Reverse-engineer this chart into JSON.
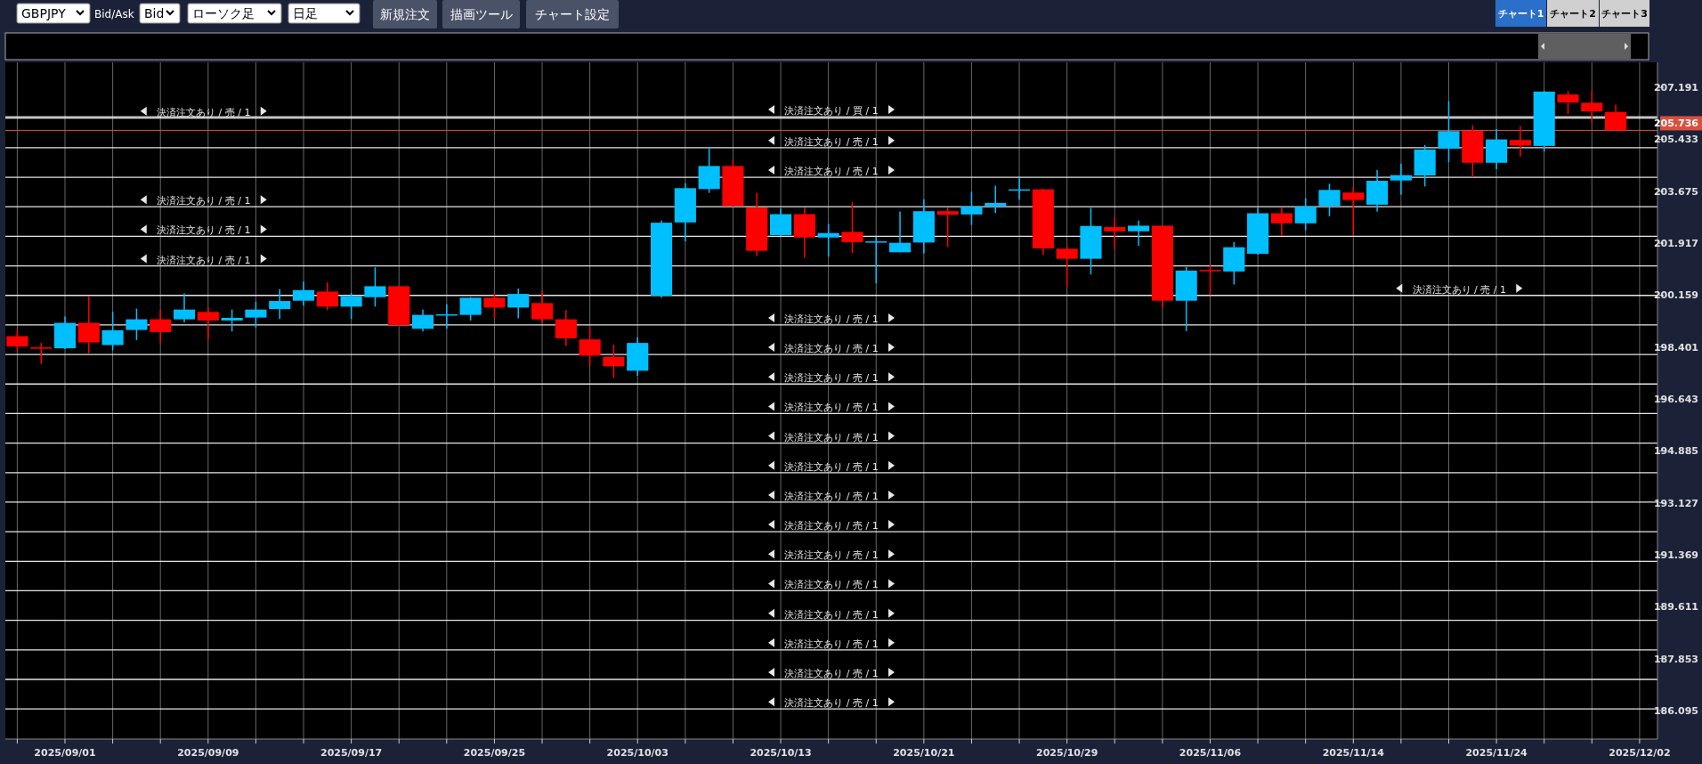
{
  "chart_data": {
    "type": "candlestick",
    "title": "GBPJPY",
    "annotations": [
      "Bid/Ask",
      "Bid",
      "ローソク足",
      "日足",
      "新規注文",
      "描画ツール",
      "チャート設定",
      "チャート1",
      "チャート2",
      "チャート3"
    ],
    "categories": [
      null,
      null,
      "2025/09/01",
      null,
      null,
      null,
      null,
      null,
      "2025/09/09",
      null,
      null,
      null,
      null,
      null,
      "2025/09/17",
      null,
      null,
      null,
      null,
      null,
      "2025/09/25",
      null,
      null,
      null,
      null,
      null,
      "2025/10/03",
      null,
      null,
      null,
      null,
      null,
      "2025/10/13",
      null,
      null,
      null,
      null,
      null,
      "2025/10/21",
      null,
      null,
      null,
      null,
      null,
      "2025/10/29",
      null,
      null,
      null,
      null,
      null,
      "2025/11/06",
      null,
      null,
      null,
      null,
      null,
      "2025/11/14",
      null,
      null,
      null,
      null,
      null,
      "2025/11/24",
      null,
      null,
      null,
      null,
      null,
      "2025/12/02"
    ],
    "ohlc": [
      [
        198.77,
        199.0,
        198.26,
        198.42
      ],
      [
        198.39,
        198.54,
        197.83,
        198.37
      ],
      [
        198.36,
        199.43,
        198.33,
        199.22
      ],
      [
        199.22,
        200.12,
        198.2,
        198.56
      ],
      [
        198.47,
        199.6,
        198.29,
        198.97
      ],
      [
        198.98,
        199.7,
        198.64,
        199.34
      ],
      [
        199.34,
        199.66,
        198.54,
        198.91
      ],
      [
        199.34,
        200.22,
        199.24,
        199.67
      ],
      [
        199.59,
        199.74,
        198.66,
        199.3
      ],
      [
        199.3,
        199.67,
        198.93,
        199.39
      ],
      [
        199.4,
        199.94,
        199.06,
        199.67
      ],
      [
        199.69,
        200.36,
        199.35,
        199.96
      ],
      [
        199.97,
        200.62,
        199.8,
        200.33
      ],
      [
        200.28,
        200.59,
        199.65,
        199.77
      ],
      [
        199.77,
        200.23,
        199.35,
        200.12
      ],
      [
        200.09,
        201.1,
        199.77,
        200.46
      ],
      [
        200.46,
        200.46,
        199.12,
        199.14
      ],
      [
        199.02,
        199.67,
        198.93,
        199.49
      ],
      [
        199.49,
        199.85,
        199.03,
        199.51
      ],
      [
        199.49,
        200.09,
        199.3,
        200.07
      ],
      [
        200.07,
        200.22,
        199.38,
        199.74
      ],
      [
        199.74,
        200.38,
        199.37,
        200.2
      ],
      [
        199.89,
        200.29,
        199.21,
        199.34
      ],
      [
        199.34,
        199.65,
        198.44,
        198.7
      ],
      [
        198.66,
        199.08,
        197.76,
        198.11
      ],
      [
        198.07,
        198.48,
        197.36,
        197.75
      ],
      [
        197.6,
        198.73,
        197.43,
        198.54
      ],
      [
        200.14,
        202.69,
        200.07,
        202.61
      ],
      [
        202.62,
        203.95,
        201.98,
        203.78
      ],
      [
        203.75,
        205.18,
        203.62,
        204.53
      ],
      [
        204.53,
        204.75,
        203.15,
        203.18
      ],
      [
        203.12,
        203.62,
        201.48,
        201.66
      ],
      [
        202.19,
        203.1,
        202.17,
        202.9
      ],
      [
        202.9,
        203.12,
        201.42,
        202.11
      ],
      [
        202.11,
        202.57,
        201.46,
        202.26
      ],
      [
        202.3,
        203.3,
        201.58,
        201.95
      ],
      [
        201.94,
        202.13,
        200.56,
        201.98
      ],
      [
        201.61,
        202.99,
        201.61,
        201.93
      ],
      [
        201.94,
        203.4,
        201.57,
        203.0
      ],
      [
        203.0,
        203.12,
        201.79,
        202.88
      ],
      [
        202.89,
        203.66,
        202.53,
        203.16
      ],
      [
        203.17,
        203.86,
        202.94,
        203.28
      ],
      [
        203.7,
        204.11,
        203.39,
        203.74
      ],
      [
        203.74,
        203.76,
        201.52,
        201.74
      ],
      [
        201.73,
        201.83,
        200.44,
        201.39
      ],
      [
        201.39,
        203.11,
        200.86,
        202.5
      ],
      [
        202.46,
        202.79,
        201.71,
        202.32
      ],
      [
        202.32,
        202.68,
        201.83,
        202.51
      ],
      [
        202.51,
        202.53,
        199.74,
        199.97
      ],
      [
        199.97,
        201.11,
        198.94,
        200.99
      ],
      [
        201.01,
        201.23,
        200.16,
        200.97
      ],
      [
        200.96,
        201.96,
        200.52,
        201.78
      ],
      [
        201.56,
        203.11,
        201.53,
        202.93
      ],
      [
        202.93,
        203.11,
        202.17,
        202.59
      ],
      [
        202.59,
        203.44,
        202.35,
        203.16
      ],
      [
        203.18,
        203.93,
        202.83,
        203.72
      ],
      [
        203.63,
        203.81,
        202.2,
        203.38
      ],
      [
        203.22,
        204.39,
        202.99,
        204.03
      ],
      [
        204.04,
        204.61,
        203.56,
        204.22
      ],
      [
        204.21,
        205.24,
        203.84,
        205.09
      ],
      [
        205.12,
        206.73,
        204.66,
        205.71
      ],
      [
        205.72,
        205.91,
        204.15,
        204.64
      ],
      [
        204.64,
        205.78,
        204.42,
        205.43
      ],
      [
        205.41,
        205.88,
        204.85,
        205.22
      ],
      [
        205.21,
        207.07,
        205.02,
        207.05
      ],
      [
        206.95,
        207.07,
        206.28,
        206.68
      ],
      [
        206.67,
        207.07,
        206.01,
        206.38
      ],
      [
        206.36,
        206.61,
        205.736,
        205.736
      ],
      null
    ],
    "colors": [
      "#ff0000",
      "#ff0000",
      "#00bfff",
      "#ff0000",
      "#00bfff",
      "#00bfff",
      "#ff0000",
      "#00bfff",
      "#ff0000",
      "#00bfff",
      "#00bfff",
      "#00bfff",
      "#00bfff",
      "#ff0000",
      "#00bfff",
      "#00bfff",
      "#ff0000",
      "#00bfff",
      "#00bfff",
      "#00bfff",
      "#ff0000",
      "#00bfff",
      "#ff0000",
      "#ff0000",
      "#ff0000",
      "#ff0000",
      "#00bfff",
      "#00bfff",
      "#00bfff",
      "#00bfff",
      "#ff0000",
      "#ff0000",
      "#00bfff",
      "#ff0000",
      "#00bfff",
      "#ff0000",
      "#00bfff",
      "#00bfff",
      "#00bfff",
      "#ff0000",
      "#00bfff",
      "#00bfff",
      "#00bfff",
      "#ff0000",
      "#ff0000",
      "#00bfff",
      "#ff0000",
      "#00bfff",
      "#ff0000",
      "#00bfff",
      "#ff0000",
      "#00bfff",
      "#00bfff",
      "#ff0000",
      "#00bfff",
      "#00bfff",
      "#ff0000",
      "#00bfff",
      "#00bfff",
      "#00bfff",
      "#00bfff",
      "#ff0000",
      "#00bfff",
      "#ff0000",
      "#00bfff",
      "#ff0000",
      "#ff0000",
      "#ff0000",
      null
    ],
    "ylim": [
      185.13,
      208.04
    ],
    "yticks": [
      207.191,
      205.433,
      203.675,
      201.917,
      200.159,
      198.401,
      196.643,
      194.885,
      193.127,
      191.369,
      189.611,
      187.853,
      186.095
    ],
    "grid": "x",
    "ref_lines": [
      {
        "axis": "y",
        "value": 205.736,
        "label": "205.736",
        "color": "#d9503f"
      },
      {
        "axis": "y",
        "value": 206.2,
        "label": "決済注文あり / 買 / 1",
        "color": "#e6e6e6"
      },
      {
        "axis": "y",
        "value": 206.15,
        "label": "決済注文あり / 売 / 1",
        "color": "#e6e6e6"
      },
      {
        "axis": "y",
        "value": 205.15,
        "label": "決済注文あり / 売 / 1",
        "color": "#e6e6e6"
      },
      {
        "axis": "y",
        "value": 204.15,
        "label": "決済注文あり / 売 / 1",
        "color": "#e6e6e6"
      },
      {
        "axis": "y",
        "value": 203.15,
        "label": "決済注文あり / 売 / 1",
        "color": "#e6e6e6"
      },
      {
        "axis": "y",
        "value": 202.15,
        "label": "決済注文あり / 売 / 1",
        "color": "#e6e6e6"
      },
      {
        "axis": "y",
        "value": 201.15,
        "label": "決済注文あり / 売 / 1",
        "color": "#e6e6e6"
      },
      {
        "axis": "y",
        "value": 200.15,
        "label": "決済注文あり / 売 / 1",
        "color": "#e6e6e6"
      },
      {
        "axis": "y",
        "value": 199.15,
        "label": "決済注文あり / 売 / 1",
        "color": "#e6e6e6"
      },
      {
        "axis": "y",
        "value": 198.15,
        "label": "決済注文あり / 売 / 1",
        "color": "#e6e6e6"
      },
      {
        "axis": "y",
        "value": 197.15,
        "label": "決済注文あり / 売 / 1",
        "color": "#e6e6e6"
      },
      {
        "axis": "y",
        "value": 196.15,
        "label": "決済注文あり / 売 / 1",
        "color": "#e6e6e6"
      },
      {
        "axis": "y",
        "value": 195.15,
        "label": "決済注文あり / 売 / 1",
        "color": "#e6e6e6"
      },
      {
        "axis": "y",
        "value": 194.15,
        "label": "決済注文あり / 売 / 1",
        "color": "#e6e6e6"
      },
      {
        "axis": "y",
        "value": 193.15,
        "label": "決済注文あり / 売 / 1",
        "color": "#e6e6e6"
      },
      {
        "axis": "y",
        "value": 192.15,
        "label": "決済注文あり / 売 / 1",
        "color": "#e6e6e6"
      },
      {
        "axis": "y",
        "value": 191.15,
        "label": "決済注文あり / 売 / 1",
        "color": "#e6e6e6"
      },
      {
        "axis": "y",
        "value": 190.15,
        "label": "決済注文あり / 売 / 1",
        "color": "#e6e6e6"
      },
      {
        "axis": "y",
        "value": 189.15,
        "label": "決済注文あり / 売 / 1",
        "color": "#e6e6e6"
      },
      {
        "axis": "y",
        "value": 188.15,
        "label": "決済注文あり / 売 / 1",
        "color": "#e6e6e6"
      },
      {
        "axis": "y",
        "value": 187.15,
        "label": "決済注文あり / 売 / 1",
        "color": "#e6e6e6"
      },
      {
        "axis": "y",
        "value": 186.15,
        "label": "決済注文あり / 売 / 1",
        "color": "#e6e6e6"
      }
    ]
  }
}
